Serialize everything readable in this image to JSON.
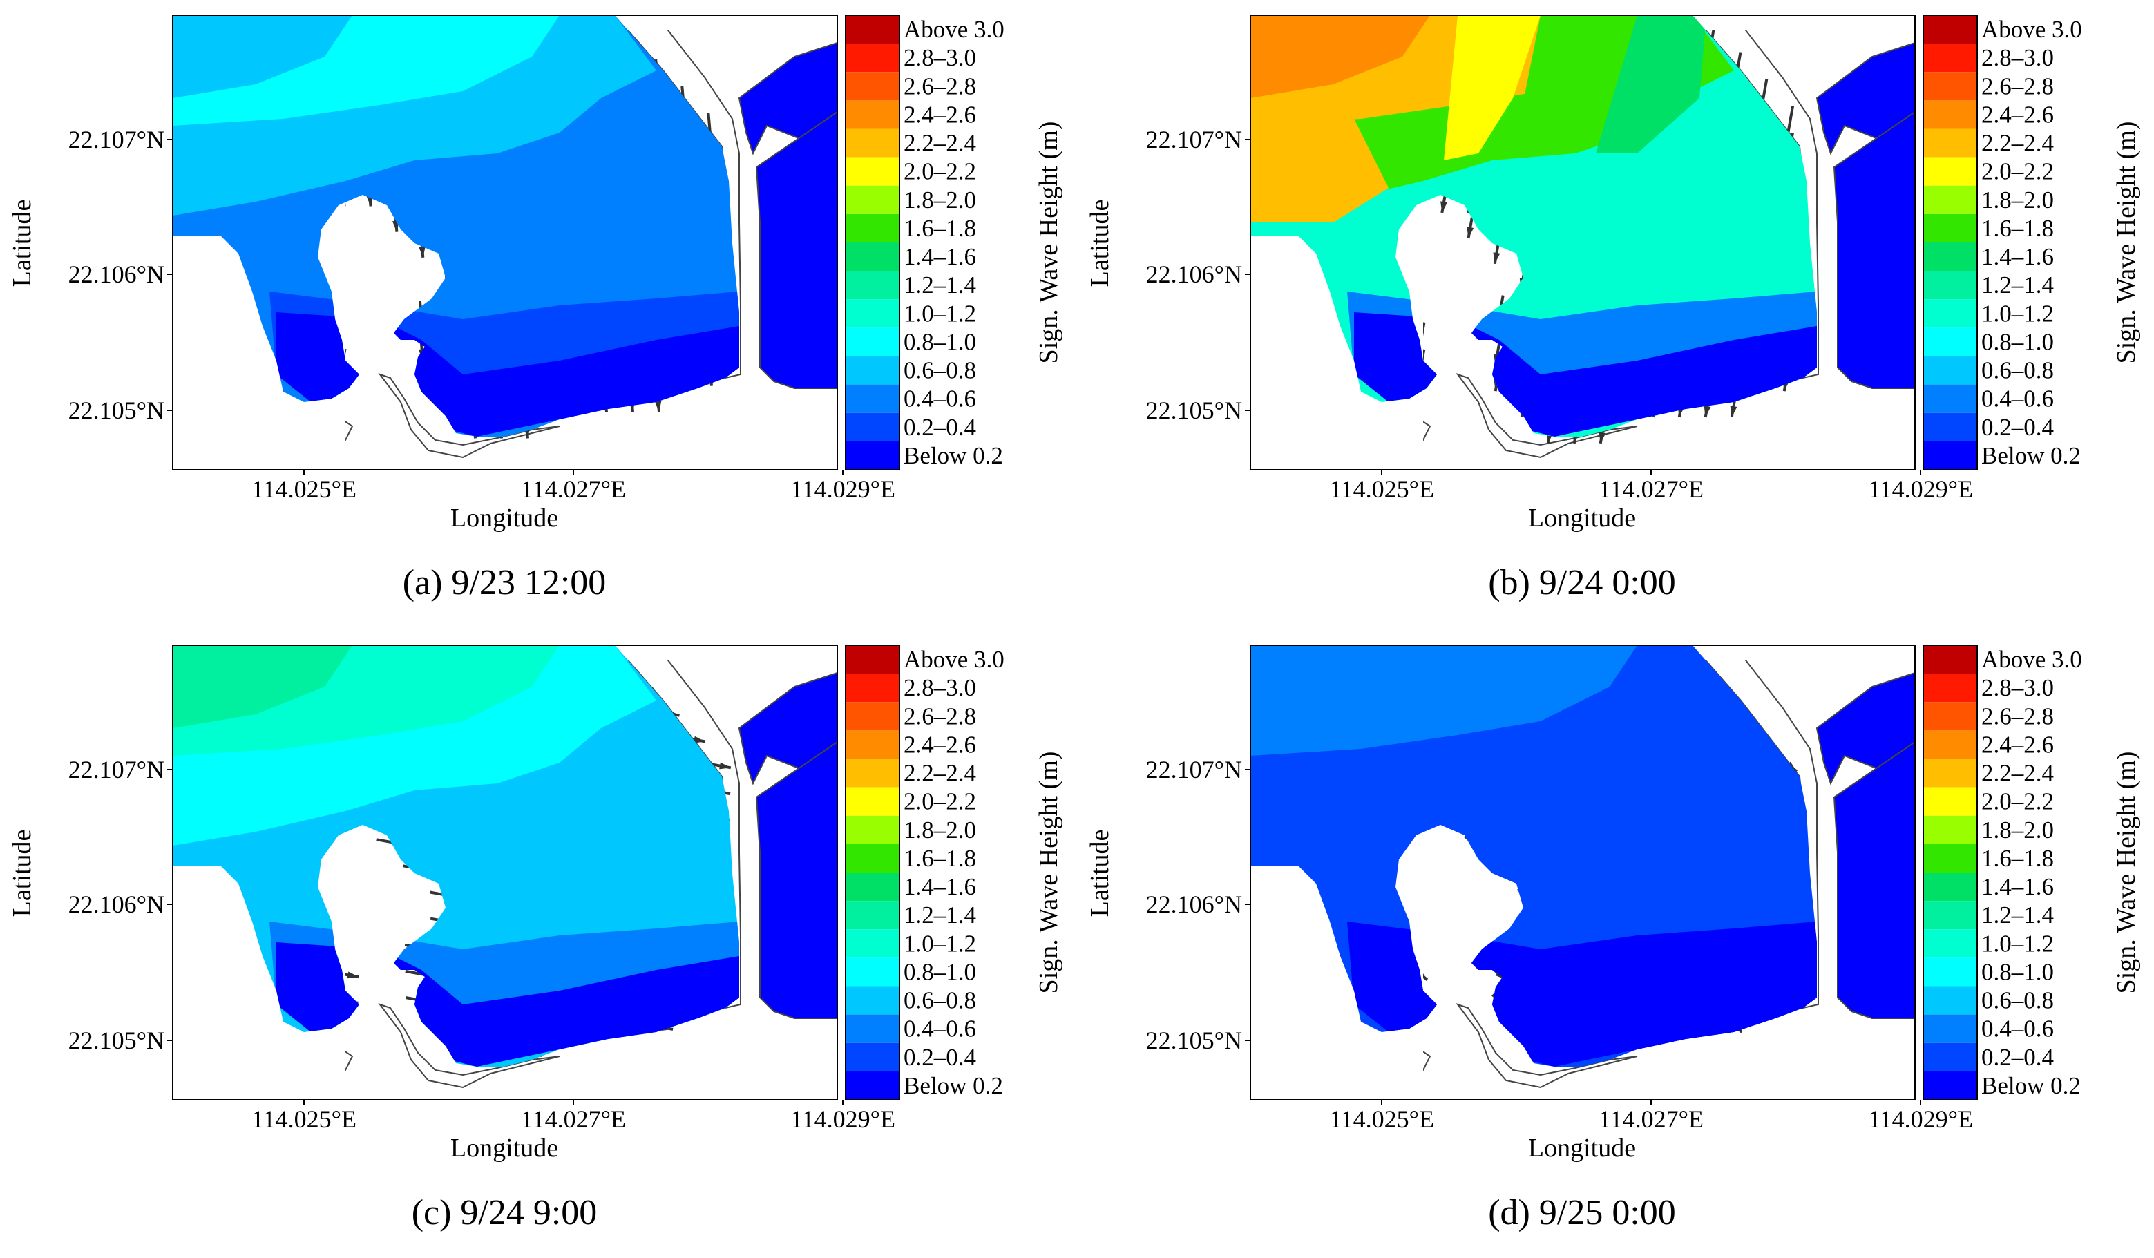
{
  "figure": {
    "axes": {
      "xlabel": "Longitude",
      "ylabel": "Latitude",
      "xticks": [
        "114.025°E",
        "114.027°E",
        "114.029°E"
      ],
      "yticks": [
        "22.107°N",
        "22.106°N",
        "22.105°N"
      ]
    },
    "colorbar": {
      "title": "Sign. Wave Height (m)",
      "classes": [
        {
          "label": "Above 3.0",
          "color": "#c00000"
        },
        {
          "label": "2.8–3.0",
          "color": "#ff1a00"
        },
        {
          "label": "2.6–2.8",
          "color": "#ff5500"
        },
        {
          "label": "2.4–2.6",
          "color": "#ff8c00"
        },
        {
          "label": "2.2–2.4",
          "color": "#ffbf00"
        },
        {
          "label": "2.0–2.2",
          "color": "#ffff00"
        },
        {
          "label": "1.8–2.0",
          "color": "#99ff00"
        },
        {
          "label": "1.6–1.8",
          "color": "#33e600"
        },
        {
          "label": "1.4–1.6",
          "color": "#00e066"
        },
        {
          "label": "1.2–1.4",
          "color": "#00f0a0"
        },
        {
          "label": "1.0–1.2",
          "color": "#00ffd0"
        },
        {
          "label": "0.8–1.0",
          "color": "#00ffff"
        },
        {
          "label": "0.6–0.8",
          "color": "#00c8ff"
        },
        {
          "label": "0.4–0.6",
          "color": "#0080ff"
        },
        {
          "label": "0.2–0.4",
          "color": "#0045ff"
        },
        {
          "label": "Below 0.2",
          "color": "#0000ff"
        }
      ]
    },
    "panels": [
      {
        "caption": "(a) 9/23 12:00",
        "wave_dir_deg": 175,
        "arrow_scale": 1.0,
        "zones": {
          "outer": 11,
          "mid": 12,
          "inner": 13,
          "bay": 14,
          "shore": 15,
          "outerwest": 12,
          "vertical_bands": false
        }
      },
      {
        "caption": "(b) 9/24 0:00",
        "wave_dir_deg": 190,
        "arrow_scale": 1.35,
        "zones": {
          "outer": 4,
          "mid": 7,
          "inner": 10,
          "bay": 13,
          "shore": 15,
          "outerwest": 3,
          "vertical_bands": true
        }
      },
      {
        "caption": "(c) 9/24 9:00",
        "wave_dir_deg": 100,
        "arrow_scale": 1.0,
        "zones": {
          "outer": 10,
          "mid": 11,
          "inner": 12,
          "bay": 13,
          "shore": 15,
          "outerwest": 9,
          "vertical_bands": false
        }
      },
      {
        "caption": "(d) 9/25 0:00",
        "wave_dir_deg": 130,
        "arrow_scale": 0.55,
        "zones": {
          "outer": 13,
          "mid": 14,
          "inner": 14,
          "bay": 15,
          "shore": 15,
          "outerwest": 13,
          "vertical_bands": false
        }
      }
    ]
  }
}
